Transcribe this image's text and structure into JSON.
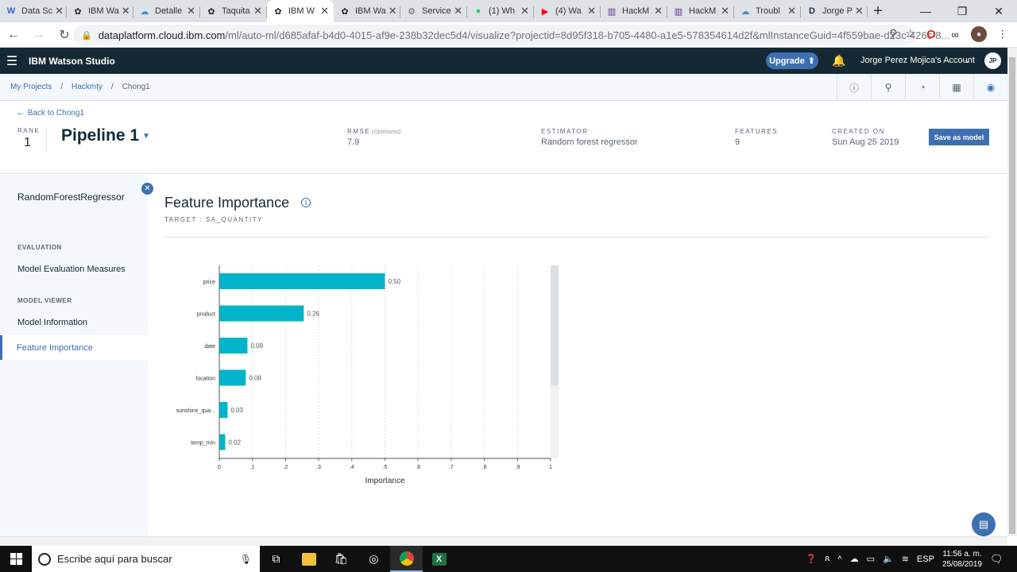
{
  "browser": {
    "tabs": [
      {
        "label": "Data Sc",
        "icon": "W",
        "icon_name": "wikipedia-icon",
        "active": false
      },
      {
        "label": "IBM Wa",
        "icon": "✿",
        "icon_name": "ibm-watson-icon",
        "active": false
      },
      {
        "label": "Detalle",
        "icon": "☁",
        "icon_name": "cloud-icon",
        "active": false
      },
      {
        "label": "Taquita",
        "icon": "✿",
        "icon_name": "ibm-watson-icon",
        "active": false
      },
      {
        "label": "IBM W",
        "icon": "✿",
        "icon_name": "ibm-watson-icon",
        "active": true
      },
      {
        "label": "IBM Wa",
        "icon": "✿",
        "icon_name": "ibm-watson-icon",
        "active": false
      },
      {
        "label": "Service",
        "icon": "⚙",
        "icon_name": "gear-icon",
        "active": false
      },
      {
        "label": "(1) Wh",
        "icon": "●",
        "icon_name": "whatsapp-icon",
        "active": false
      },
      {
        "label": "(4) Wa",
        "icon": "▶",
        "icon_name": "youtube-icon",
        "active": false
      },
      {
        "label": "HackM",
        "icon": "▥",
        "icon_name": "hackmty-icon",
        "active": false
      },
      {
        "label": "HackM",
        "icon": "▥",
        "icon_name": "hackmty-icon",
        "active": false
      },
      {
        "label": "Troubl",
        "icon": "☁",
        "icon_name": "cloud-icon",
        "active": false
      },
      {
        "label": "Jorge P",
        "icon": "D",
        "icon_name": "d-icon",
        "active": false
      }
    ],
    "url_host": "dataplatform.cloud.ibm.com",
    "url_rest": "/ml/auto-ml/d685afaf-b4d0-4015-af9e-238b32dec5d4/visualize?projectid=8d95f318-b705-4480-a1e5-578354614d2f&mlInstanceGuid=4f559bae-d23c-426c-8..."
  },
  "header": {
    "brand": "IBM Watson Studio",
    "upgrade_label": "Upgrade",
    "account": "Jorge Perez Mojica's Account",
    "initials": "JP"
  },
  "breadcrumbs": [
    "My Projects",
    "Hackmty",
    "Chong1"
  ],
  "pipeline": {
    "back_label": "Back to Chong1",
    "rank_label": "RANK",
    "rank": "1",
    "title": "Pipeline 1",
    "rmse_label": "RMSE",
    "rmse_note": "(Optimized)",
    "rmse": "7.9",
    "estimator_label": "ESTIMATOR",
    "estimator": "Random forest regressor",
    "features_label": "FEATURES",
    "features": "9",
    "created_label": "CREATED ON",
    "created": "Sun Aug 25 2019",
    "save_label": "Save as model"
  },
  "sidebar": {
    "title": "RandomForestRegressor",
    "evaluation_heading": "EVALUATION",
    "eval_item": "Model Evaluation Measures",
    "viewer_heading": "MODEL VIEWER",
    "info_item": "Model Information",
    "fi_item": "Feature Importance"
  },
  "main": {
    "title": "Feature Importance",
    "target": "TARGET : SA_QUANTITY"
  },
  "chart_data": {
    "type": "bar",
    "orientation": "horizontal",
    "categories": [
      "price",
      "product",
      "date",
      "location",
      "sunshine_qua...",
      "temp_min"
    ],
    "values": [
      0.5,
      0.255,
      0.085,
      0.08,
      0.025,
      0.018
    ],
    "value_labels": [
      "0.50",
      "0.26",
      "0.09",
      "0.08",
      "0.03",
      "0.02"
    ],
    "xticks": [
      "0",
      ".1",
      ".2",
      ".3",
      ".4",
      ".5",
      ".6",
      ".7",
      ".8",
      ".9",
      "1"
    ],
    "xlim": [
      0,
      1
    ],
    "xlabel": "Importance",
    "bar_color": "#00b4cb",
    "grid": "vertical-dashed"
  },
  "taskbar": {
    "search_placeholder": "Escribe aquí para buscar",
    "lang": "ESP",
    "time": "11:56 a. m.",
    "date": "25/08/2019"
  }
}
